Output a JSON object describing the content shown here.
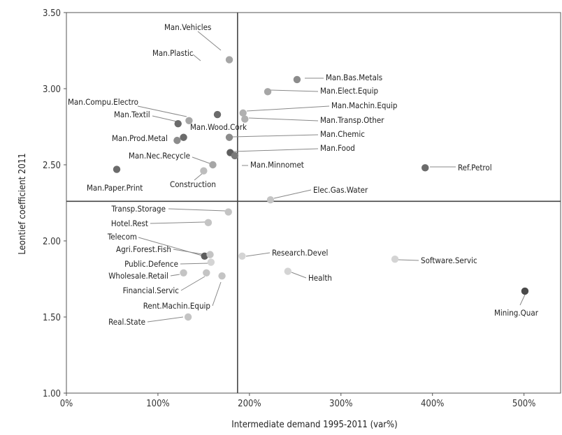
{
  "chart_data": {
    "type": "scatter",
    "title": "",
    "xlabel": "Intermediate demand 1995-2011 (var%)",
    "ylabel": "Leontief coefficient 2011",
    "xlim": [
      0,
      5.4
    ],
    "ylim": [
      1.0,
      3.5
    ],
    "x_ticks": [
      0,
      1,
      2,
      3,
      4,
      5
    ],
    "x_tick_labels": [
      "0%",
      "100%",
      "200%",
      "300%",
      "400%",
      "500%"
    ],
    "y_ticks": [
      1.0,
      1.5,
      2.0,
      2.5,
      3.0,
      3.5
    ],
    "y_tick_labels": [
      "1.00",
      "1.50",
      "2.00",
      "2.50",
      "3.00",
      "3.50"
    ],
    "reference_lines": {
      "x": 1.87,
      "y": 2.26
    },
    "grid": false,
    "points": [
      {
        "label": "Man.Vehicles",
        "x": 1.78,
        "y": 3.19,
        "color": "#a6a6a6"
      },
      {
        "label": "Man.Plastic",
        "x": 1.65,
        "y": 2.83,
        "color": "#6b6b6b"
      },
      {
        "label": "Man.Bas.Metals",
        "x": 2.52,
        "y": 3.06,
        "color": "#8c8c8c"
      },
      {
        "label": "Man.Elect.Equip",
        "x": 2.2,
        "y": 2.98,
        "color": "#a6a6a6"
      },
      {
        "label": "Man.Machin.Equip",
        "x": 1.93,
        "y": 2.84,
        "color": "#b0b0b0"
      },
      {
        "label": "Man.Transp.Other",
        "x": 1.95,
        "y": 2.8,
        "color": "#b0b0b0"
      },
      {
        "label": "Man.Chemic",
        "x": 1.78,
        "y": 2.68,
        "color": "#8c8c8c"
      },
      {
        "label": "Man.Food",
        "x": 1.79,
        "y": 2.58,
        "color": "#5e5e5e"
      },
      {
        "label": "Man.Minnomet",
        "x": 1.84,
        "y": 2.56,
        "color": "#7a7a7a"
      },
      {
        "label": "Man.Compu.Electro",
        "x": 1.22,
        "y": 2.77,
        "color": "#6b6b6b"
      },
      {
        "label": "Man.Textil",
        "x": 1.34,
        "y": 2.79,
        "color": "#a6a6a6"
      },
      {
        "label": "Man.Wood.Cork",
        "x": 1.28,
        "y": 2.68,
        "color": "#6b6b6b"
      },
      {
        "label": "Man.Prod.Metal",
        "x": 1.21,
        "y": 2.66,
        "color": "#8c8c8c"
      },
      {
        "label": "Man.Nec.Recycle",
        "x": 1.6,
        "y": 2.5,
        "color": "#a6a6a6"
      },
      {
        "label": "Construction",
        "x": 1.5,
        "y": 2.46,
        "color": "#bdbdbd"
      },
      {
        "label": "Man.Paper.Print",
        "x": 0.55,
        "y": 2.47,
        "color": "#6b6b6b"
      },
      {
        "label": "Ref.Petrol",
        "x": 3.92,
        "y": 2.48,
        "color": "#6b6b6b"
      },
      {
        "label": "Elec.Gas.Water",
        "x": 2.23,
        "y": 2.27,
        "color": "#c4c4c4"
      },
      {
        "label": "Transp.Storage",
        "x": 1.77,
        "y": 2.19,
        "color": "#c4c4c4"
      },
      {
        "label": "Hotel.Rest",
        "x": 1.55,
        "y": 2.12,
        "color": "#c4c4c4"
      },
      {
        "label": "Telecom",
        "x": 1.51,
        "y": 1.9,
        "color": "#5e5e5e"
      },
      {
        "label": "Agri.Forest.Fish",
        "x": 1.57,
        "y": 1.91,
        "color": "#c4c4c4"
      },
      {
        "label": "Public.Defence",
        "x": 1.58,
        "y": 1.86,
        "color": "#d4d4d4"
      },
      {
        "label": "Wholesale.Retail",
        "x": 1.28,
        "y": 1.79,
        "color": "#c4c4c4"
      },
      {
        "label": "Financial.Servic",
        "x": 1.53,
        "y": 1.79,
        "color": "#c4c4c4"
      },
      {
        "label": "Rent.Machin.Equip",
        "x": 1.7,
        "y": 1.77,
        "color": "#c4c4c4"
      },
      {
        "label": "Real.State",
        "x": 1.33,
        "y": 1.5,
        "color": "#c4c4c4"
      },
      {
        "label": "Research.Devel",
        "x": 1.92,
        "y": 1.9,
        "color": "#d4d4d4"
      },
      {
        "label": "Health",
        "x": 2.42,
        "y": 1.8,
        "color": "#d4d4d4"
      },
      {
        "label": "Software.Servic",
        "x": 3.59,
        "y": 1.88,
        "color": "#d4d4d4"
      },
      {
        "label": "Mining.Quar",
        "x": 5.01,
        "y": 1.67,
        "color": "#4a4a4a"
      }
    ]
  }
}
